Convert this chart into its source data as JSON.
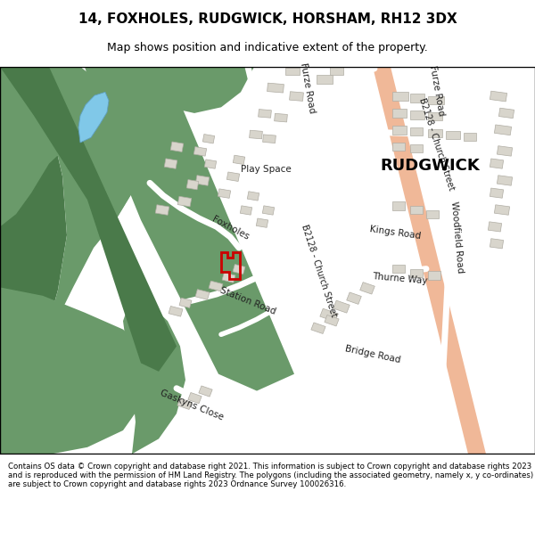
{
  "title_line1": "14, FOXHOLES, RUDGWICK, HORSHAM, RH12 3DX",
  "title_line2": "Map shows position and indicative extent of the property.",
  "footer_text": "Contains OS data © Crown copyright and database right 2021. This information is subject to Crown copyright and database rights 2023 and is reproduced with the permission of HM Land Registry. The polygons (including the associated geometry, namely x, y co-ordinates) are subject to Crown copyright and database rights 2023 Ordnance Survey 100026316.",
  "map_bg": "#f2f0eb",
  "green_color": "#6a9a6a",
  "green_dark": "#4a7a4a",
  "blue_color": "#80c8e8",
  "road_major_color": "#f0b898",
  "building_color": "#d8d5cc",
  "building_outline": "#b0ada4",
  "red_plot_color": "#cc0000",
  "fig_width": 6.0,
  "fig_height": 6.25,
  "dpi": 100,
  "buildings": [
    [
      300,
      430,
      18,
      10,
      -5
    ],
    [
      325,
      420,
      15,
      10,
      -5
    ],
    [
      320,
      450,
      16,
      9,
      0
    ],
    [
      355,
      440,
      18,
      10,
      0
    ],
    [
      370,
      450,
      15,
      10,
      0
    ],
    [
      290,
      400,
      14,
      9,
      -5
    ],
    [
      308,
      395,
      14,
      9,
      -5
    ],
    [
      280,
      375,
      14,
      9,
      -5
    ],
    [
      295,
      370,
      14,
      9,
      -5
    ],
    [
      440,
      420,
      18,
      10,
      0
    ],
    [
      460,
      418,
      16,
      10,
      0
    ],
    [
      480,
      415,
      18,
      10,
      0
    ],
    [
      440,
      400,
      16,
      10,
      0
    ],
    [
      460,
      398,
      16,
      10,
      0
    ],
    [
      480,
      396,
      16,
      10,
      0
    ],
    [
      440,
      380,
      16,
      10,
      0
    ],
    [
      460,
      378,
      14,
      10,
      0
    ],
    [
      480,
      376,
      16,
      10,
      0
    ],
    [
      500,
      374,
      16,
      10,
      0
    ],
    [
      520,
      372,
      14,
      10,
      0
    ],
    [
      440,
      360,
      14,
      10,
      0
    ],
    [
      460,
      358,
      14,
      10,
      0
    ],
    [
      550,
      420,
      18,
      10,
      -8
    ],
    [
      560,
      400,
      16,
      10,
      -8
    ],
    [
      555,
      380,
      18,
      10,
      -8
    ],
    [
      558,
      355,
      16,
      10,
      -8
    ],
    [
      550,
      340,
      14,
      10,
      -8
    ],
    [
      558,
      320,
      16,
      10,
      -8
    ],
    [
      550,
      305,
      14,
      10,
      -8
    ],
    [
      555,
      285,
      16,
      10,
      -8
    ],
    [
      548,
      265,
      14,
      10,
      -8
    ],
    [
      550,
      245,
      14,
      10,
      -8
    ],
    [
      440,
      290,
      14,
      10,
      0
    ],
    [
      460,
      285,
      14,
      10,
      0
    ],
    [
      478,
      280,
      14,
      10,
      0
    ],
    [
      440,
      215,
      14,
      10,
      0
    ],
    [
      460,
      210,
      14,
      10,
      0
    ],
    [
      480,
      207,
      14,
      10,
      0
    ],
    [
      220,
      320,
      14,
      10,
      -10
    ],
    [
      230,
      340,
      12,
      9,
      -10
    ],
    [
      245,
      305,
      13,
      9,
      -10
    ],
    [
      255,
      325,
      13,
      9,
      -10
    ],
    [
      262,
      345,
      12,
      9,
      -10
    ],
    [
      200,
      295,
      14,
      10,
      -10
    ],
    [
      210,
      315,
      12,
      10,
      -10
    ],
    [
      218,
      355,
      13,
      9,
      -10
    ],
    [
      228,
      370,
      12,
      9,
      -10
    ],
    [
      185,
      340,
      13,
      10,
      -10
    ],
    [
      192,
      360,
      13,
      10,
      -10
    ],
    [
      175,
      285,
      14,
      10,
      -10
    ],
    [
      270,
      285,
      12,
      9,
      -10
    ],
    [
      278,
      302,
      12,
      9,
      -10
    ],
    [
      288,
      270,
      12,
      9,
      -10
    ],
    [
      295,
      285,
      12,
      9,
      -10
    ],
    [
      220,
      185,
      14,
      9,
      -15
    ],
    [
      235,
      195,
      14,
      9,
      -15
    ],
    [
      250,
      205,
      13,
      9,
      -15
    ],
    [
      262,
      215,
      12,
      9,
      -15
    ],
    [
      190,
      165,
      14,
      9,
      -15
    ],
    [
      202,
      175,
      12,
      9,
      -15
    ],
    [
      360,
      160,
      18,
      10,
      -20
    ],
    [
      375,
      170,
      16,
      10,
      -20
    ],
    [
      390,
      180,
      14,
      10,
      -20
    ],
    [
      405,
      192,
      14,
      10,
      -20
    ],
    [
      350,
      145,
      14,
      9,
      -20
    ],
    [
      365,
      154,
      14,
      9,
      -20
    ],
    [
      200,
      55,
      14,
      9,
      -20
    ],
    [
      212,
      62,
      13,
      9,
      -20
    ],
    [
      224,
      70,
      13,
      9,
      -20
    ]
  ],
  "road_labels": [
    [
      345,
      435,
      "Furze Road",
      -80,
      7.5
    ],
    [
      490,
      432,
      "Furze Road",
      -80,
      7.5
    ],
    [
      258,
      268,
      "Foxholes",
      -28,
      7.5
    ],
    [
      278,
      182,
      "Station Road",
      -22,
      7.5
    ],
    [
      443,
      263,
      "Kings Road",
      -8,
      7.5
    ],
    [
      448,
      208,
      "Thurne Way",
      -5,
      7.5
    ],
    [
      418,
      118,
      "Bridge Road",
      -12,
      7.5
    ],
    [
      513,
      258,
      "Woodfield Road",
      -85,
      7.5
    ],
    [
      298,
      338,
      "Play Space",
      0,
      7.5
    ],
    [
      358,
      218,
      "B2128 - Church Street",
      -72,
      7
    ],
    [
      490,
      368,
      "B2128 - Church Street",
      -72,
      7
    ],
    [
      215,
      58,
      "Gaskyns Close",
      -22,
      7.5
    ]
  ]
}
